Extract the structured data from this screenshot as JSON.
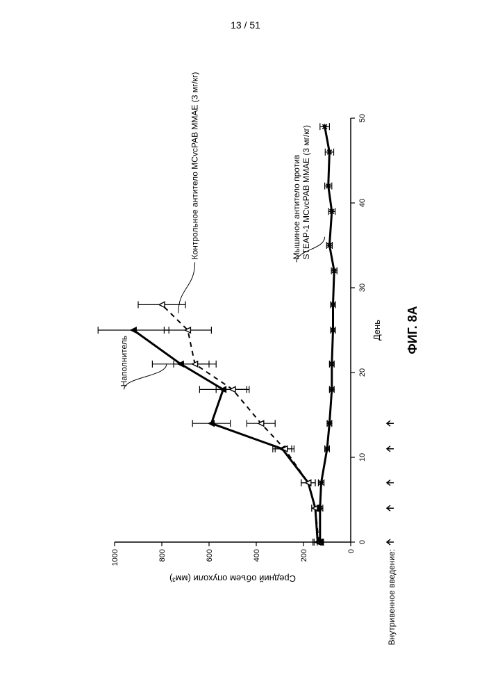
{
  "page_number": "13 / 51",
  "figure_label": "ФИГ. 8A",
  "iv_label": "Внутривенное введение:",
  "chart": {
    "type": "line",
    "xlabel": "День",
    "ylabel": "Средний объем опухоли (мм³)",
    "xlim": [
      0,
      50
    ],
    "ylim": [
      0,
      1000
    ],
    "xtick_step": 10,
    "ytick_step": 200,
    "xticks": [
      0,
      10,
      20,
      30,
      40,
      50
    ],
    "yticks": [
      0,
      200,
      400,
      600,
      800,
      1000
    ],
    "label_fontsize": 13,
    "tick_fontsize": 11,
    "background_color": "#ffffff",
    "axis_color": "#000000",
    "line_width_main": 2.5,
    "line_width_dash": 2,
    "error_bar_width": 1.2,
    "error_cap": 5,
    "dose_arrows_x": [
      0,
      4,
      7,
      11,
      14
    ],
    "series": {
      "filler": {
        "label": "Наполнитель",
        "color": "#000000",
        "style": "solid",
        "width": 3,
        "marker": "triangle-filled",
        "marker_size": 8,
        "x": [
          0,
          4,
          7,
          11,
          14,
          18,
          21,
          25
        ],
        "y": [
          140,
          150,
          180,
          290,
          590,
          540,
          720,
          920
        ],
        "err": [
          20,
          15,
          30,
          40,
          80,
          100,
          120,
          150
        ]
      },
      "control": {
        "label": "Контрольное антитело MCvcPAB MMAE (3 мг/кг)",
        "color": "#000000",
        "style": "dashed",
        "width": 2,
        "marker": "triangle-open",
        "marker_size": 8,
        "x": [
          0,
          4,
          7,
          11,
          14,
          18,
          21,
          25,
          28
        ],
        "y": [
          135,
          150,
          180,
          280,
          380,
          500,
          660,
          690,
          800
        ],
        "err": [
          20,
          15,
          30,
          40,
          60,
          70,
          90,
          100,
          100
        ]
      },
      "steap": {
        "label": "Мышиное антитело против STEAP-1 MCvcPAB MMAE (3 мг/кг)",
        "label_line1": "Мышиное антитело против",
        "label_line2": "STEAP-1 MCvcPAB MMAE (3 мг/кг)",
        "color": "#000000",
        "style": "solid",
        "width": 3,
        "marker": "star",
        "marker_size": 8,
        "x": [
          0,
          4,
          7,
          11,
          14,
          18,
          21,
          25,
          28,
          32,
          35,
          39,
          42,
          46,
          49
        ],
        "y": [
          130,
          130,
          125,
          100,
          90,
          80,
          80,
          75,
          75,
          70,
          90,
          80,
          95,
          90,
          110
        ],
        "err": [
          12,
          12,
          12,
          10,
          10,
          10,
          10,
          10,
          10,
          12,
          12,
          14,
          15,
          18,
          20
        ]
      }
    }
  }
}
